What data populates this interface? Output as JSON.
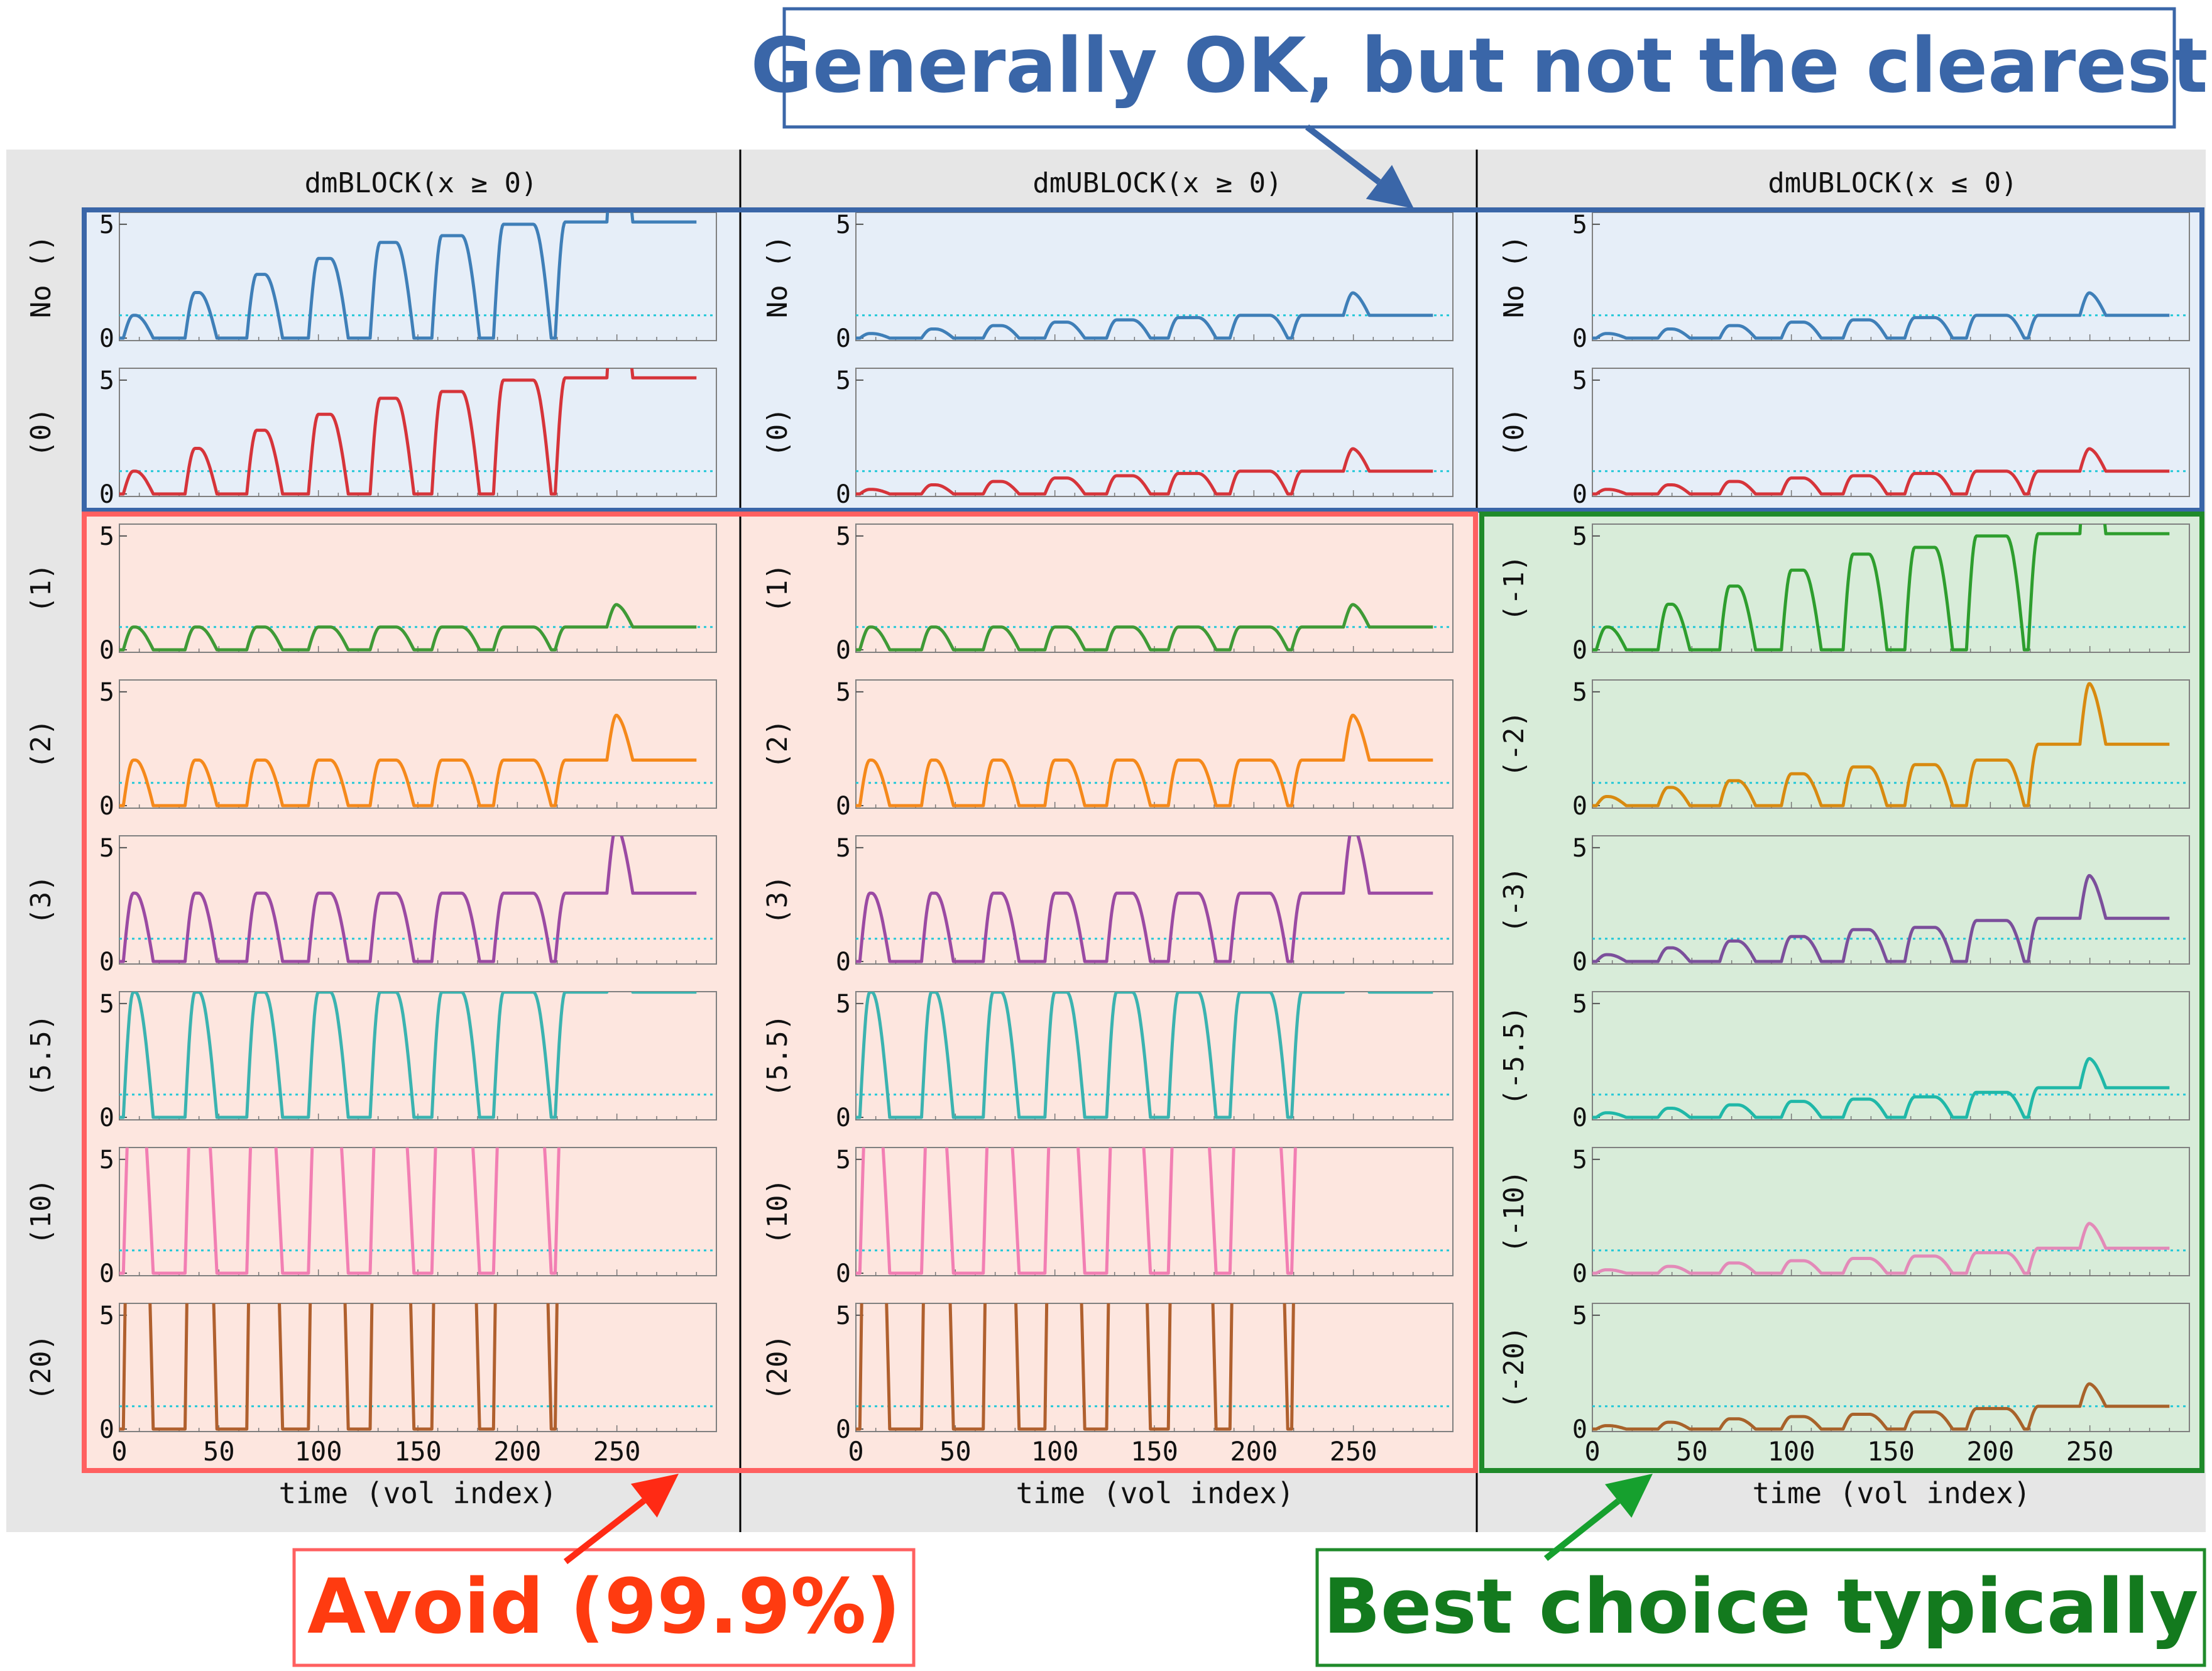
{
  "figure": {
    "callouts": {
      "top": "Generally OK, but not the clearest",
      "left": "Avoid (99.9%)",
      "right": "Best choice typically"
    },
    "colors": {
      "top_box": "#3a66a8",
      "left_box": "#ff6060",
      "right_box": "#1f8a2a",
      "left_text": "#ff3b10",
      "right_text": "#137a1e",
      "blue_band": "#e6eef8",
      "red_band": "#fde6df",
      "green_band": "#d8ecd9",
      "gray_bg": "#e6e6e6",
      "reference_line": "#22c8d8"
    }
  },
  "chart_data": {
    "type": "line",
    "xlabel": "time (vol index)",
    "xticks": [
      0,
      50,
      100,
      150,
      200,
      250
    ],
    "yticks": [
      0,
      5
    ],
    "xlim": [
      0,
      300
    ],
    "ylim": [
      0,
      5.3
    ],
    "reference_line": 1,
    "grid": false,
    "stimulus_onsets": [
      2,
      33,
      64,
      95,
      126,
      157,
      188,
      219,
      245
    ],
    "stimulus_durations": [
      1,
      2,
      4,
      6,
      8,
      10,
      15,
      25,
      40
    ],
    "columns": [
      {
        "title": "dmBLOCK(x ≥ 0)",
        "rows": [
          {
            "label": "No ()",
            "color": "#3f7fb8",
            "peaks": [
              1.0,
              2.0,
              2.8,
              3.5,
              4.2,
              4.5,
              5.0,
              5.1,
              5.1
            ]
          },
          {
            "label": "(0)",
            "color": "#d6343a",
            "peaks": [
              1.0,
              2.0,
              2.8,
              3.5,
              4.2,
              4.5,
              5.0,
              5.1,
              5.1
            ]
          },
          {
            "label": "(1)",
            "color": "#3f9a36",
            "peaks": [
              1,
              1,
              1,
              1,
              1,
              1,
              1,
              1,
              1
            ]
          },
          {
            "label": "(2)",
            "color": "#f5891b",
            "peaks": [
              2,
              2,
              2,
              2,
              2,
              2,
              2,
              2,
              2
            ]
          },
          {
            "label": "(3)",
            "color": "#9b4aa3",
            "peaks": [
              3,
              3,
              3,
              3,
              3,
              3,
              3,
              3,
              3
            ]
          },
          {
            "label": "(5.5)",
            "color": "#3bb3b0",
            "peaks": [
              5.5,
              5.5,
              5.5,
              5.5,
              5.5,
              5.5,
              5.5,
              5.5,
              5.5
            ]
          },
          {
            "label": "(10)",
            "color": "#f27fb3",
            "peaks": [
              10,
              10,
              10,
              10,
              10,
              10,
              10,
              10,
              10
            ]
          },
          {
            "label": "(20)",
            "color": "#b0602e",
            "peaks": [
              20,
              20,
              20,
              20,
              20,
              20,
              20,
              20,
              20
            ]
          }
        ]
      },
      {
        "title": "dmUBLOCK(x ≥ 0)",
        "rows": [
          {
            "label": "No ()",
            "color": "#3f7fb8",
            "peaks": [
              0.2,
              0.4,
              0.55,
              0.7,
              0.8,
              0.9,
              1.0,
              1.0,
              1.0
            ]
          },
          {
            "label": "(0)",
            "color": "#d6343a",
            "peaks": [
              0.2,
              0.4,
              0.55,
              0.7,
              0.8,
              0.9,
              1.0,
              1.0,
              1.0
            ]
          },
          {
            "label": "(1)",
            "color": "#3f9a36",
            "peaks": [
              1,
              1,
              1,
              1,
              1,
              1,
              1,
              1,
              1
            ]
          },
          {
            "label": "(2)",
            "color": "#f5891b",
            "peaks": [
              2,
              2,
              2,
              2,
              2,
              2,
              2,
              2,
              2
            ]
          },
          {
            "label": "(3)",
            "color": "#9b4aa3",
            "peaks": [
              3,
              3,
              3,
              3,
              3,
              3,
              3,
              3,
              3
            ]
          },
          {
            "label": "(5.5)",
            "color": "#3bb3b0",
            "peaks": [
              5.5,
              5.5,
              5.5,
              5.5,
              5.5,
              5.5,
              5.5,
              5.5,
              5.5
            ]
          },
          {
            "label": "(10)",
            "color": "#f27fb3",
            "peaks": [
              10,
              10,
              10,
              10,
              10,
              10,
              10,
              10,
              10
            ]
          },
          {
            "label": "(20)",
            "color": "#b0602e",
            "peaks": [
              20,
              20,
              20,
              20,
              20,
              20,
              20,
              20,
              20
            ]
          }
        ]
      },
      {
        "title": "dmUBLOCK(x ≤ 0)",
        "rows": [
          {
            "label": "No ()",
            "color": "#3f7fb8",
            "peaks": [
              0.2,
              0.4,
              0.55,
              0.7,
              0.8,
              0.9,
              1.0,
              1.0,
              1.0
            ]
          },
          {
            "label": "(0)",
            "color": "#d6343a",
            "peaks": [
              0.2,
              0.4,
              0.55,
              0.7,
              0.8,
              0.9,
              1.0,
              1.0,
              1.0
            ]
          },
          {
            "label": "(-1)",
            "color": "#2e9e2e",
            "peaks": [
              1.0,
              2.0,
              2.8,
              3.5,
              4.2,
              4.5,
              5.0,
              5.1,
              5.1
            ]
          },
          {
            "label": "(-2)",
            "color": "#d88a10",
            "peaks": [
              0.4,
              0.8,
              1.1,
              1.4,
              1.7,
              1.8,
              2.0,
              2.7,
              2.7
            ]
          },
          {
            "label": "(-3)",
            "color": "#7b4f9b",
            "peaks": [
              0.3,
              0.6,
              0.9,
              1.1,
              1.4,
              1.5,
              1.8,
              1.9,
              1.9
            ]
          },
          {
            "label": "(-5.5)",
            "color": "#20b8a8",
            "peaks": [
              0.2,
              0.4,
              0.55,
              0.7,
              0.8,
              0.9,
              1.1,
              1.3,
              1.3
            ]
          },
          {
            "label": "(-10)",
            "color": "#e38ab8",
            "peaks": [
              0.15,
              0.3,
              0.45,
              0.55,
              0.65,
              0.75,
              0.9,
              1.1,
              1.1
            ]
          },
          {
            "label": "(-20)",
            "color": "#a8622a",
            "peaks": [
              0.15,
              0.3,
              0.45,
              0.55,
              0.65,
              0.75,
              0.9,
              1.0,
              1.0
            ]
          }
        ]
      }
    ]
  }
}
